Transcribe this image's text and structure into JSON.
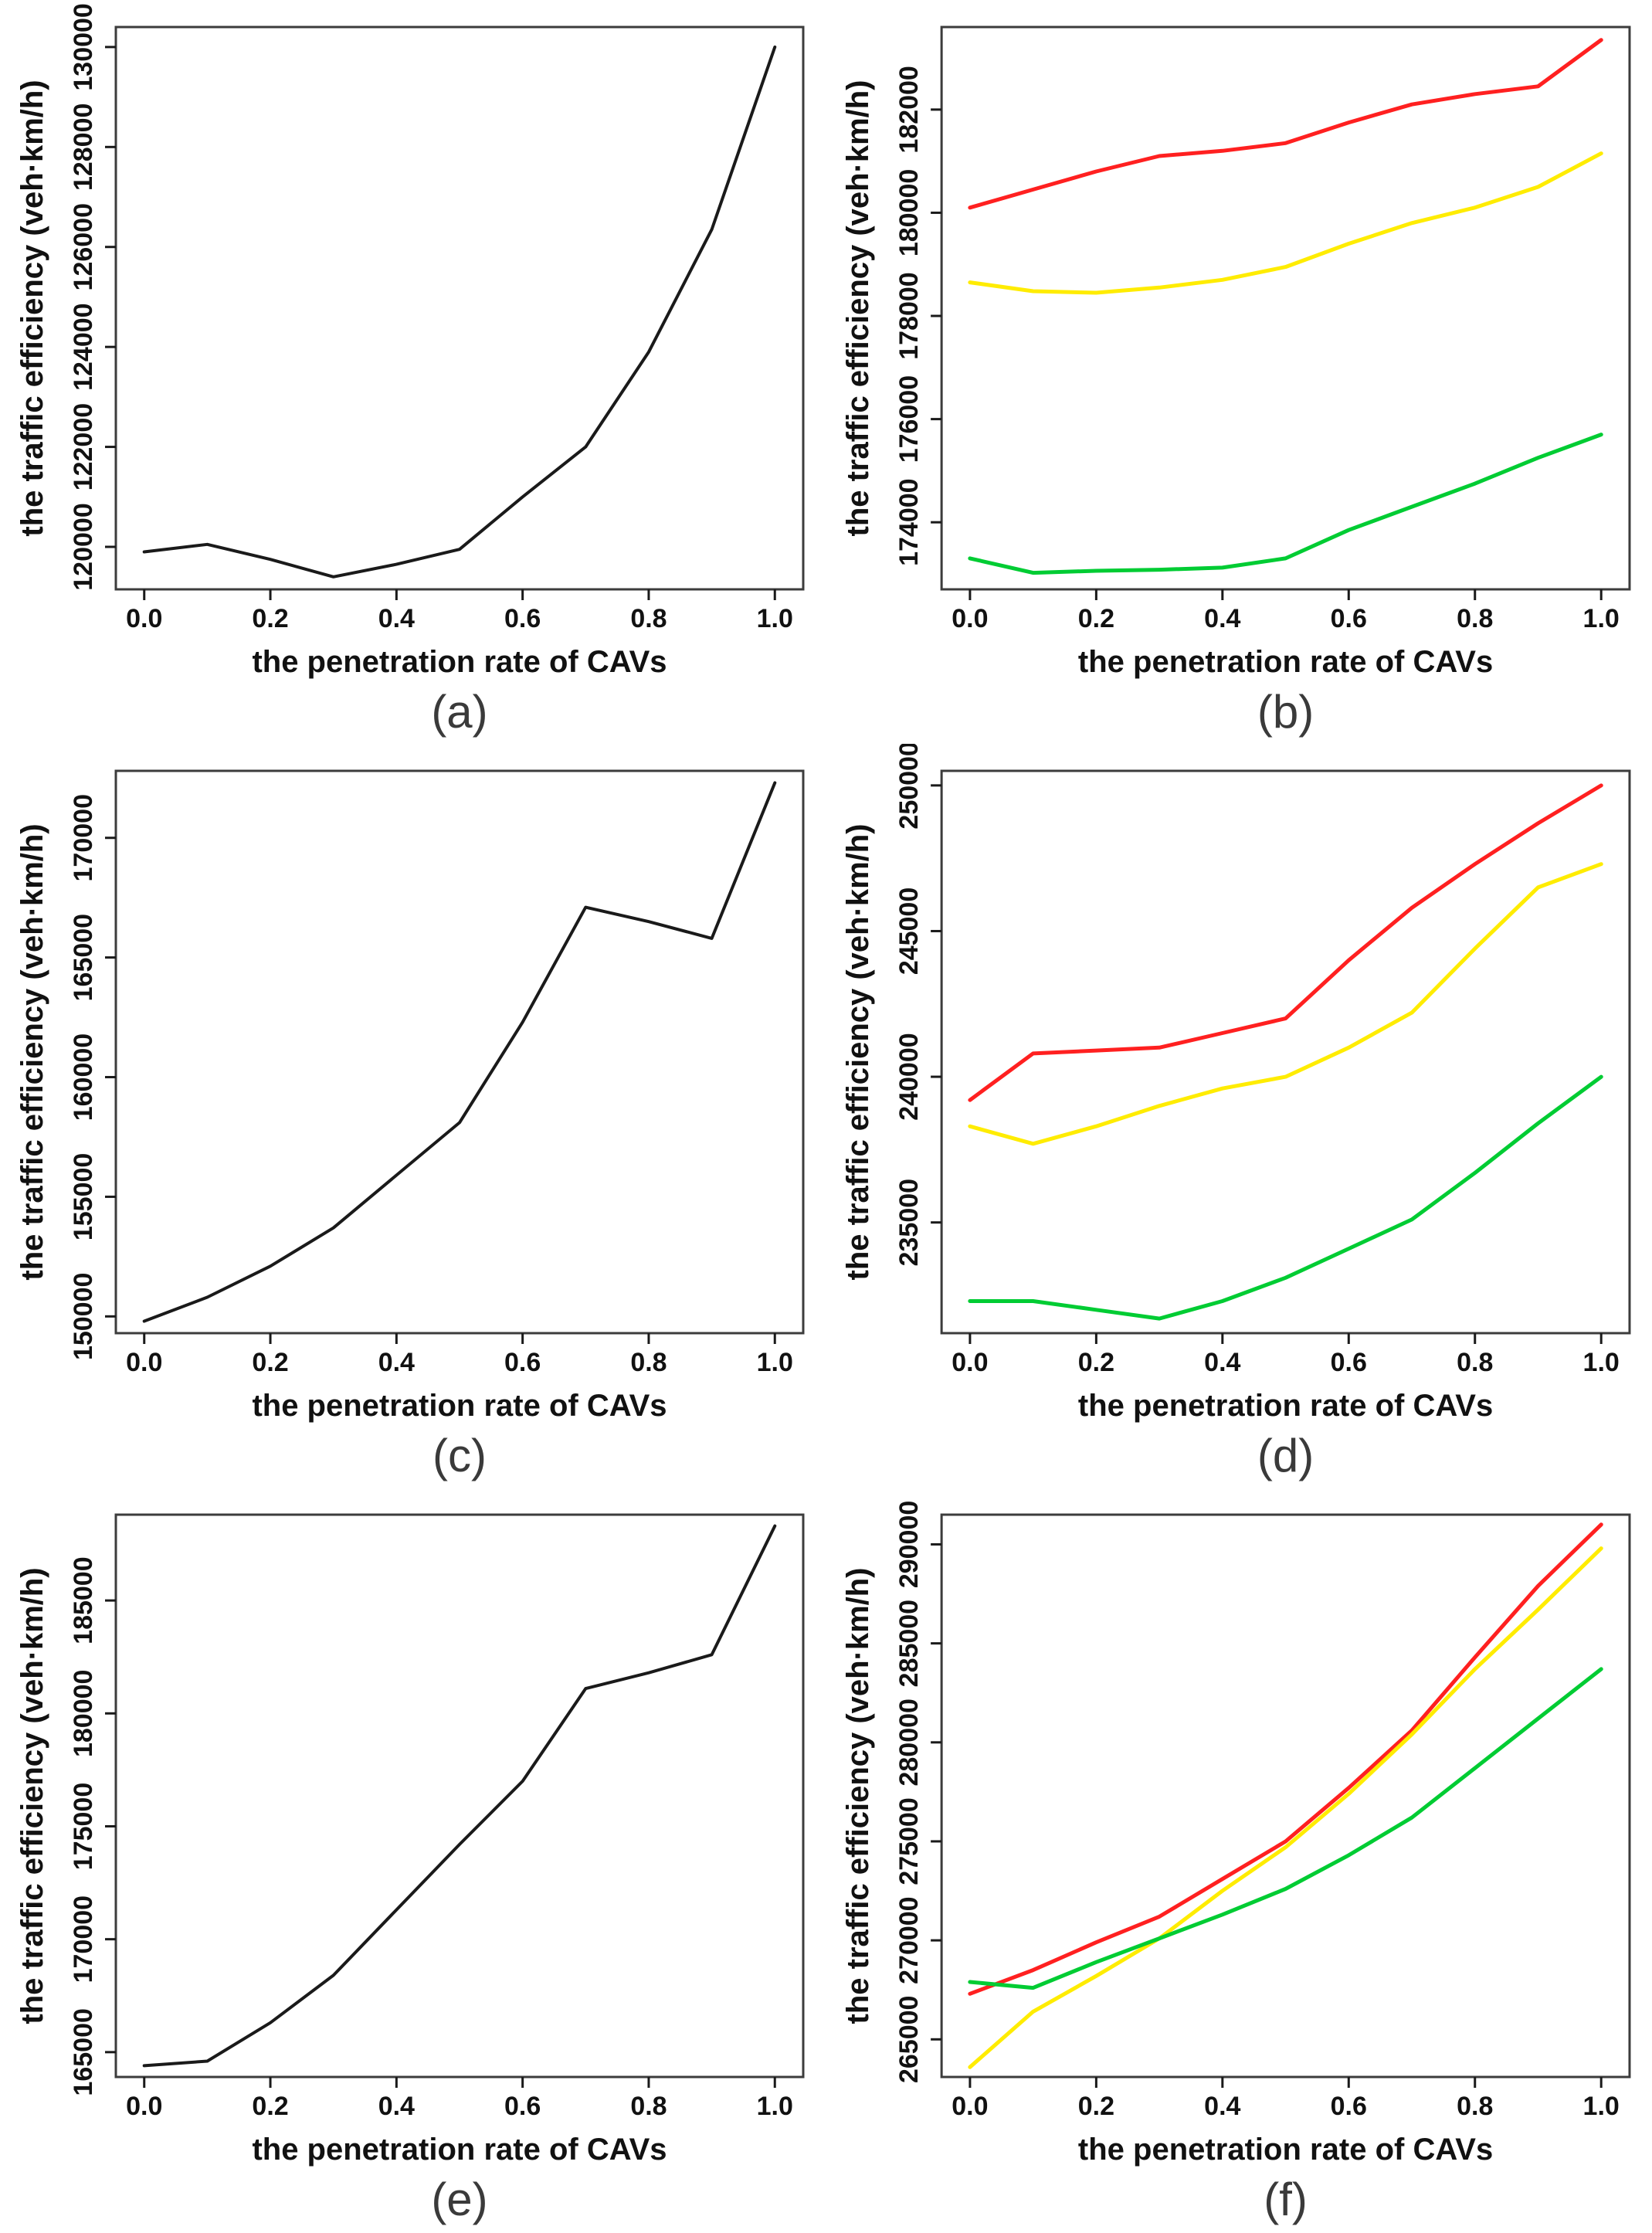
{
  "page": {
    "background": "#ffffff"
  },
  "chart_data": [
    {
      "id": "a",
      "type": "line",
      "label": "(a)",
      "xlabel": "the penetration rate of CAVs",
      "ylabel": "the traffic efficiency (veh·km/h)",
      "x": [
        0.0,
        0.1,
        0.2,
        0.3,
        0.4,
        0.5,
        0.6,
        0.7,
        0.8,
        0.9,
        1.0
      ],
      "xlim": [
        -0.045,
        1.045
      ],
      "ylim": [
        119150,
        130400
      ],
      "xticks": [
        0.0,
        0.2,
        0.4,
        0.6,
        0.8,
        1.0
      ],
      "xtick_labels": [
        "0.0",
        "0.2",
        "0.4",
        "0.6",
        "0.8",
        "1.0"
      ],
      "yticks": [
        120000,
        122000,
        124000,
        126000,
        128000,
        130000
      ],
      "ytick_labels": [
        "120000",
        "122000",
        "124000",
        "126000",
        "128000",
        "130000"
      ],
      "grid": false,
      "legend": "none",
      "series": [
        {
          "name": "black",
          "color": "#1a1a1a",
          "width": 4,
          "values": [
            119900,
            120050,
            119750,
            119400,
            119650,
            119950,
            121000,
            122000,
            123900,
            126350,
            130000
          ]
        }
      ]
    },
    {
      "id": "b",
      "type": "line",
      "label": "(b)",
      "xlabel": "the penetration rate of CAVs",
      "ylabel": "the traffic efficiency (veh·km/h)",
      "x": [
        0.0,
        0.1,
        0.2,
        0.3,
        0.4,
        0.5,
        0.6,
        0.7,
        0.8,
        0.9,
        1.0
      ],
      "xlim": [
        -0.045,
        1.045
      ],
      "ylim": [
        172700,
        183600
      ],
      "xticks": [
        0.0,
        0.2,
        0.4,
        0.6,
        0.8,
        1.0
      ],
      "xtick_labels": [
        "0.0",
        "0.2",
        "0.4",
        "0.6",
        "0.8",
        "1.0"
      ],
      "yticks": [
        174000,
        176000,
        178000,
        180000,
        182000
      ],
      "ytick_labels": [
        "174000",
        "176000",
        "178000",
        "180000",
        "182000"
      ],
      "grid": false,
      "legend": "none",
      "series": [
        {
          "name": "red",
          "color": "#ff2020",
          "width": 5,
          "values": [
            180100,
            180450,
            180800,
            181100,
            181200,
            181350,
            181750,
            182100,
            182300,
            182450,
            183350
          ]
        },
        {
          "name": "yellow",
          "color": "#ffec00",
          "width": 5,
          "values": [
            178650,
            178480,
            178450,
            178550,
            178700,
            178950,
            179400,
            179800,
            180100,
            180500,
            181150
          ]
        },
        {
          "name": "green",
          "color": "#00cc33",
          "width": 5,
          "values": [
            173300,
            173020,
            173060,
            173080,
            173120,
            173300,
            173850,
            174300,
            174750,
            175250,
            175700
          ]
        }
      ]
    },
    {
      "id": "c",
      "type": "line",
      "label": "(c)",
      "xlabel": "the penetration rate of CAVs",
      "ylabel": "the traffic efficiency (veh·km/h)",
      "x": [
        0.0,
        0.1,
        0.2,
        0.3,
        0.4,
        0.5,
        0.6,
        0.7,
        0.8,
        0.9,
        1.0
      ],
      "xlim": [
        -0.045,
        1.045
      ],
      "ylim": [
        149300,
        172800
      ],
      "xticks": [
        0.0,
        0.2,
        0.4,
        0.6,
        0.8,
        1.0
      ],
      "xtick_labels": [
        "0.0",
        "0.2",
        "0.4",
        "0.6",
        "0.8",
        "1.0"
      ],
      "yticks": [
        150000,
        155000,
        160000,
        165000,
        170000
      ],
      "ytick_labels": [
        "150000",
        "155000",
        "160000",
        "165000",
        "170000"
      ],
      "grid": false,
      "legend": "none",
      "series": [
        {
          "name": "black",
          "color": "#1a1a1a",
          "width": 4,
          "values": [
            149800,
            150800,
            152100,
            153700,
            155900,
            158100,
            162300,
            167100,
            166500,
            165800,
            172300
          ]
        }
      ]
    },
    {
      "id": "d",
      "type": "line",
      "label": "(d)",
      "xlabel": "the penetration rate of CAVs",
      "ylabel": "the traffic efficiency (veh·km/h)",
      "x": [
        0.0,
        0.1,
        0.2,
        0.3,
        0.4,
        0.5,
        0.6,
        0.7,
        0.8,
        0.9,
        1.0
      ],
      "xlim": [
        -0.045,
        1.045
      ],
      "ylim": [
        231200,
        250500
      ],
      "xticks": [
        0.0,
        0.2,
        0.4,
        0.6,
        0.8,
        1.0
      ],
      "xtick_labels": [
        "0.0",
        "0.2",
        "0.4",
        "0.6",
        "0.8",
        "1.0"
      ],
      "yticks": [
        235000,
        240000,
        245000,
        250000
      ],
      "ytick_labels": [
        "235000",
        "240000",
        "245000",
        "250000"
      ],
      "grid": false,
      "legend": "none",
      "series": [
        {
          "name": "red",
          "color": "#ff2020",
          "width": 5,
          "values": [
            239200,
            240800,
            240900,
            241000,
            241500,
            242000,
            244000,
            245800,
            247300,
            248700,
            250000
          ]
        },
        {
          "name": "yellow",
          "color": "#ffec00",
          "width": 5,
          "values": [
            238300,
            237700,
            238300,
            239000,
            239600,
            240000,
            241000,
            242200,
            244400,
            246500,
            247300
          ]
        },
        {
          "name": "green",
          "color": "#00cc33",
          "width": 5,
          "values": [
            232300,
            232300,
            232000,
            231700,
            232300,
            233100,
            234100,
            235100,
            236700,
            238400,
            240000
          ]
        }
      ]
    },
    {
      "id": "e",
      "type": "line",
      "label": "(e)",
      "xlabel": "the penetration rate of CAVs",
      "ylabel": "the traffic efficiency (veh·km/h)",
      "x": [
        0.0,
        0.1,
        0.2,
        0.3,
        0.4,
        0.5,
        0.6,
        0.7,
        0.8,
        0.9,
        1.0
      ],
      "xlim": [
        -0.045,
        1.045
      ],
      "ylim": [
        163900,
        188800
      ],
      "xticks": [
        0.0,
        0.2,
        0.4,
        0.6,
        0.8,
        1.0
      ],
      "xtick_labels": [
        "0.0",
        "0.2",
        "0.4",
        "0.6",
        "0.8",
        "1.0"
      ],
      "yticks": [
        165000,
        170000,
        175000,
        180000,
        185000
      ],
      "ytick_labels": [
        "165000",
        "170000",
        "175000",
        "180000",
        "185000"
      ],
      "grid": false,
      "legend": "none",
      "series": [
        {
          "name": "black",
          "color": "#1a1a1a",
          "width": 4,
          "values": [
            164400,
            164600,
            166300,
            168400,
            171300,
            174200,
            177000,
            181100,
            181800,
            182600,
            188300
          ]
        }
      ]
    },
    {
      "id": "f",
      "type": "line",
      "label": "(f)",
      "xlabel": "the penetration rate of CAVs",
      "ylabel": "the traffic efficiency (veh·km/h)",
      "x": [
        0.0,
        0.1,
        0.2,
        0.3,
        0.4,
        0.5,
        0.6,
        0.7,
        0.8,
        0.9,
        1.0
      ],
      "xlim": [
        -0.045,
        1.045
      ],
      "ylim": [
        263100,
        291500
      ],
      "xticks": [
        0.0,
        0.2,
        0.4,
        0.6,
        0.8,
        1.0
      ],
      "xtick_labels": [
        "0.0",
        "0.2",
        "0.4",
        "0.6",
        "0.8",
        "1.0"
      ],
      "yticks": [
        265000,
        270000,
        275000,
        280000,
        285000,
        290000
      ],
      "ytick_labels": [
        "265000",
        "270000",
        "275000",
        "280000",
        "285000",
        "290000"
      ],
      "grid": false,
      "legend": "none",
      "series": [
        {
          "name": "red",
          "color": "#ff2020",
          "width": 5,
          "values": [
            267300,
            268500,
            269900,
            271200,
            273100,
            275000,
            277700,
            280600,
            284300,
            287900,
            291000
          ]
        },
        {
          "name": "yellow",
          "color": "#ffec00",
          "width": 5,
          "values": [
            263600,
            266400,
            268200,
            270100,
            272500,
            274700,
            277400,
            280400,
            283700,
            286700,
            289800
          ]
        },
        {
          "name": "green",
          "color": "#00cc33",
          "width": 5,
          "values": [
            267900,
            267600,
            268900,
            270100,
            271300,
            272600,
            274300,
            276200,
            278700,
            281200,
            283700
          ]
        }
      ]
    }
  ]
}
